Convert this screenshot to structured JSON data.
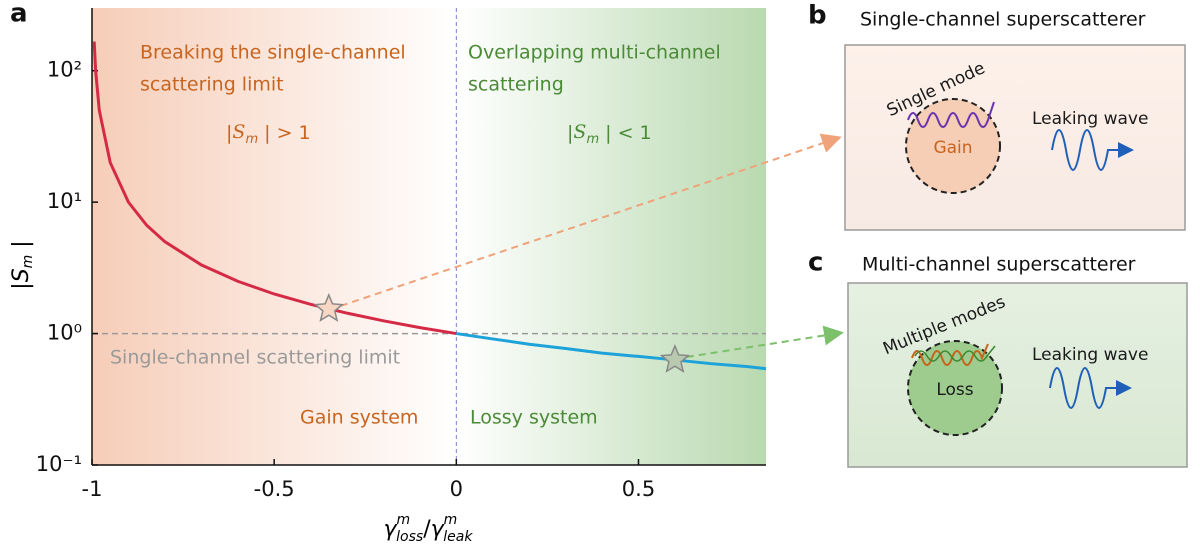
{
  "chart_data": {
    "type": "line",
    "x_label": [
      "γ",
      "m",
      "loss",
      "/",
      "γ",
      "m",
      "leak"
    ],
    "y_label": [
      "|",
      "S",
      "m",
      " |"
    ],
    "xlim": [
      -1,
      0.85
    ],
    "ylim": [
      0.1,
      300
    ],
    "log_y": true,
    "xticks": [
      -1,
      -0.5,
      0,
      0.5
    ],
    "yticks": [
      {
        "value": 0.1,
        "label": "10⁻¹"
      },
      {
        "value": 1,
        "label": "10⁰"
      },
      {
        "value": 10,
        "label": "10¹"
      },
      {
        "value": 100,
        "label": "10²"
      }
    ],
    "series": [
      {
        "color": "#d42a45",
        "x": [
          -0.994,
          -0.99,
          -0.98,
          -0.95,
          -0.9,
          -0.85,
          -0.8,
          -0.7,
          -0.6,
          -0.5,
          -0.4,
          -0.3,
          -0.2,
          -0.1,
          0
        ],
        "values": [
          166.7,
          100,
          50,
          20,
          10,
          6.67,
          5,
          3.33,
          2.5,
          2,
          1.67,
          1.43,
          1.25,
          1.11,
          1
        ]
      },
      {
        "color": "#1ea2da",
        "x": [
          0,
          0.1,
          0.2,
          0.3,
          0.4,
          0.5,
          0.6,
          0.7,
          0.8,
          0.85
        ],
        "values": [
          1,
          0.91,
          0.83,
          0.77,
          0.71,
          0.67,
          0.63,
          0.59,
          0.56,
          0.54
        ]
      }
    ],
    "hline": 1,
    "vline": 0,
    "markers": [
      {
        "x": -0.35,
        "y": 1.54
      },
      {
        "x": 0.6,
        "y": 0.63
      }
    ],
    "annotations": {
      "gain_region": [
        "Breaking the single-channel",
        "scattering limit"
      ],
      "gain_condition": [
        "|",
        "S",
        "m",
        " | > 1"
      ],
      "loss_region": [
        "Overlapping multi-channel",
        "scattering"
      ],
      "loss_condition": [
        "|",
        "S",
        "m",
        " | < 1"
      ],
      "limit": "Single-channel scattering limit",
      "gain_system": "Gain system",
      "lossy_system": "Lossy system"
    }
  },
  "panels": {
    "a": "a",
    "b": "b",
    "c": "c",
    "b_title": "Single-channel superscatterer",
    "b_mode": "Single mode",
    "b_gain": "Gain",
    "b_wave": "Leaking wave",
    "c_title": "Multi-channel superscatterer",
    "c_mode": "Multiple modes",
    "c_loss": "Loss",
    "c_wave": "Leaking wave"
  }
}
